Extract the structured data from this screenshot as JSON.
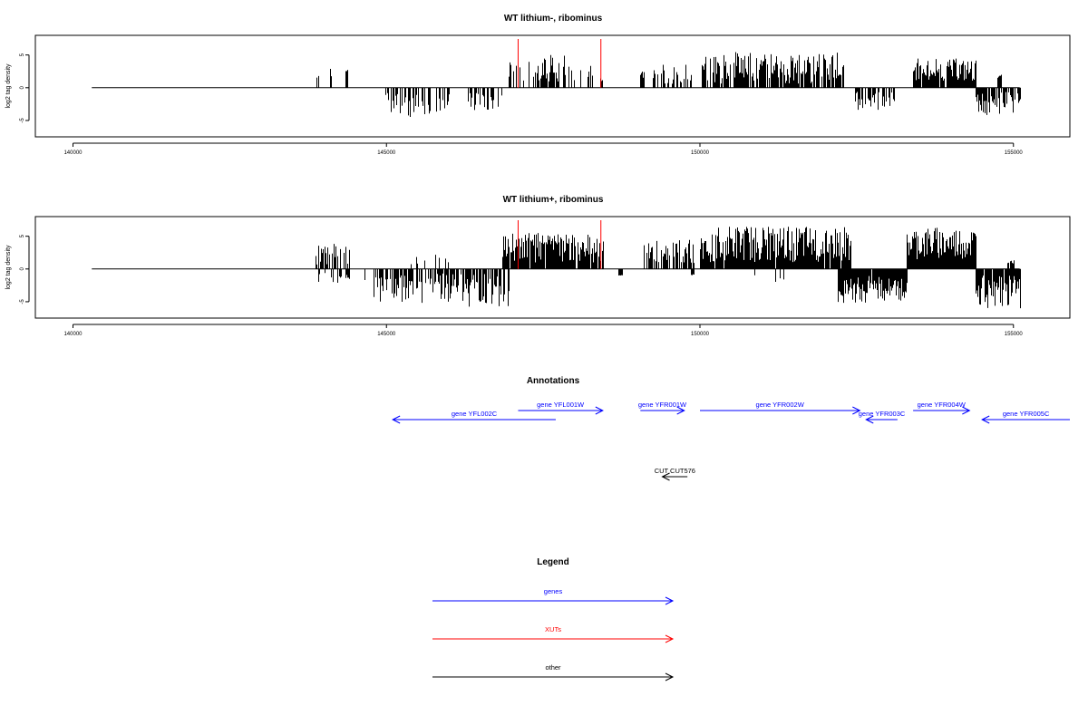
{
  "chart_data": [
    {
      "type": "bar",
      "title": "WT lithium-, ribominus",
      "ylabel": "log2 tag density",
      "xlabel": "",
      "xlim": [
        139400,
        155900
      ],
      "ylim": [
        -7.5,
        8
      ],
      "xticks": [
        140000,
        145000,
        150000,
        155000
      ],
      "yticks": [
        -5,
        0,
        5
      ],
      "baseline": {
        "x_start": 140300,
        "x_end": 155100
      },
      "segments": [
        {
          "x0": 143850,
          "x1": 144150,
          "density": 0.25,
          "min": 1.0,
          "max": 3.4,
          "sign": 1,
          "seed": 11
        },
        {
          "x0": 144350,
          "x1": 144380,
          "density": 1.0,
          "min": 2.5,
          "max": 2.8,
          "sign": 1,
          "seed": 12
        },
        {
          "x0": 144950,
          "x1": 145700,
          "density": 0.55,
          "min": 0.6,
          "max": 4.8,
          "sign": -1,
          "seed": 13
        },
        {
          "x0": 145750,
          "x1": 146000,
          "density": 0.4,
          "min": 0.8,
          "max": 3.8,
          "sign": -1,
          "seed": 14
        },
        {
          "x0": 146300,
          "x1": 146850,
          "density": 0.5,
          "min": 0.8,
          "max": 3.5,
          "sign": -1,
          "seed": 15
        },
        {
          "x0": 146950,
          "x1": 147350,
          "density": 0.35,
          "min": 0.8,
          "max": 4.0,
          "sign": 1,
          "seed": 16
        },
        {
          "x0": 147350,
          "x1": 147850,
          "density": 0.7,
          "min": 0.6,
          "max": 5.0,
          "sign": 1,
          "seed": 17
        },
        {
          "x0": 147850,
          "x1": 148300,
          "density": 0.35,
          "min": 0.6,
          "max": 3.5,
          "sign": 1,
          "seed": 18
        },
        {
          "x0": 148350,
          "x1": 148450,
          "density": 0.5,
          "min": 0.6,
          "max": 2.5,
          "sign": 1,
          "seed": 19
        },
        {
          "x0": 149050,
          "x1": 149100,
          "density": 1.0,
          "min": 1.5,
          "max": 2.5,
          "sign": 1,
          "seed": 20
        },
        {
          "x0": 149250,
          "x1": 149400,
          "density": 0.4,
          "min": 0.8,
          "max": 3.5,
          "sign": 1,
          "seed": 21
        },
        {
          "x0": 149400,
          "x1": 149850,
          "density": 0.6,
          "min": 0.6,
          "max": 3.8,
          "sign": 1,
          "seed": 22
        },
        {
          "x0": 150000,
          "x1": 152300,
          "density": 0.75,
          "min": 0.6,
          "max": 5.5,
          "sign": 1,
          "seed": 23
        },
        {
          "x0": 152400,
          "x1": 153100,
          "density": 0.5,
          "min": 0.5,
          "max": 3.5,
          "sign": -1,
          "seed": 24
        },
        {
          "x0": 153400,
          "x1": 154400,
          "density": 0.95,
          "min": 1.0,
          "max": 4.5,
          "sign": 1,
          "seed": 25
        },
        {
          "x0": 154400,
          "x1": 155100,
          "density": 0.8,
          "min": 0.6,
          "max": 4.2,
          "sign": -1,
          "seed": 26
        },
        {
          "x0": 154750,
          "x1": 154800,
          "density": 1.0,
          "min": 1.5,
          "max": 2.0,
          "sign": 1,
          "seed": 27
        }
      ],
      "red_lines": [
        147100,
        148420
      ]
    },
    {
      "type": "bar",
      "title": "WT lithium+, ribominus",
      "ylabel": "log2 tag density",
      "xlabel": "",
      "xlim": [
        139400,
        155900
      ],
      "ylim": [
        -7.5,
        8
      ],
      "xticks": [
        140000,
        145000,
        150000,
        155000
      ],
      "yticks": [
        -5,
        0,
        5
      ],
      "baseline": {
        "x_start": 140300,
        "x_end": 155100
      },
      "segments": [
        {
          "x0": 143850,
          "x1": 144400,
          "density": 0.6,
          "min": 0.6,
          "max": 4.0,
          "sign": 1,
          "seed": 31
        },
        {
          "x0": 143900,
          "x1": 144650,
          "density": 0.2,
          "min": 0.6,
          "max": 2.8,
          "sign": -1,
          "seed": 32
        },
        {
          "x0": 144800,
          "x1": 146300,
          "density": 0.75,
          "min": 0.6,
          "max": 5.2,
          "sign": -1,
          "seed": 33
        },
        {
          "x0": 146300,
          "x1": 146950,
          "density": 0.6,
          "min": 0.6,
          "max": 5.8,
          "sign": -1,
          "seed": 34
        },
        {
          "x0": 145300,
          "x1": 146000,
          "density": 0.15,
          "min": 0.6,
          "max": 2.2,
          "sign": 1,
          "seed": 35
        },
        {
          "x0": 146850,
          "x1": 148450,
          "density": 0.95,
          "min": 1.0,
          "max": 5.5,
          "sign": 1,
          "seed": 36
        },
        {
          "x0": 148700,
          "x1": 148750,
          "density": 1.0,
          "min": 0.8,
          "max": 1.0,
          "sign": -1,
          "seed": 37
        },
        {
          "x0": 149100,
          "x1": 149900,
          "density": 0.6,
          "min": 0.6,
          "max": 4.5,
          "sign": 1,
          "seed": 38
        },
        {
          "x0": 149850,
          "x1": 149900,
          "density": 1.0,
          "min": 0.8,
          "max": 1.0,
          "sign": -1,
          "seed": 39
        },
        {
          "x0": 150000,
          "x1": 152400,
          "density": 0.95,
          "min": 1.0,
          "max": 6.5,
          "sign": 1,
          "seed": 40
        },
        {
          "x0": 150800,
          "x1": 151600,
          "density": 0.1,
          "min": 0.6,
          "max": 2.5,
          "sign": -1,
          "seed": 41
        },
        {
          "x0": 152200,
          "x1": 153300,
          "density": 0.95,
          "min": 1.0,
          "max": 5.2,
          "sign": -1,
          "seed": 42
        },
        {
          "x0": 153300,
          "x1": 154400,
          "density": 1.0,
          "min": 1.5,
          "max": 6.5,
          "sign": 1,
          "seed": 43
        },
        {
          "x0": 154400,
          "x1": 155100,
          "density": 0.95,
          "min": 1.0,
          "max": 6.0,
          "sign": -1,
          "seed": 44
        },
        {
          "x0": 154900,
          "x1": 155000,
          "density": 0.6,
          "min": 0.6,
          "max": 1.5,
          "sign": 1,
          "seed": 45
        }
      ],
      "red_lines": [
        147100,
        148420
      ]
    }
  ],
  "annotations": {
    "title": "Annotations",
    "xlim": [
      139400,
      155900
    ],
    "items": [
      {
        "label": "gene YFL002C",
        "x_start": 147700,
        "x_end": 145100,
        "row": 2,
        "color": "#0000ff"
      },
      {
        "label": "gene YFL001W",
        "x_start": 147100,
        "x_end": 148450,
        "row": 1,
        "color": "#0000ff"
      },
      {
        "label": "gene YFR001W",
        "x_start": 149050,
        "x_end": 149750,
        "row": 1,
        "color": "#0000ff"
      },
      {
        "label": "gene YFR002W",
        "x_start": 150000,
        "x_end": 152550,
        "row": 1,
        "color": "#0000ff"
      },
      {
        "label": "gene YFR003C",
        "x_start": 153150,
        "x_end": 152650,
        "row": 2,
        "color": "#0000ff"
      },
      {
        "label": "gene YFR004W",
        "x_start": 153400,
        "x_end": 154300,
        "row": 1,
        "color": "#0000ff"
      },
      {
        "label": "gene YFR005C",
        "x_start": 155900,
        "x_end": 154500,
        "row": 2,
        "color": "#0000ff"
      },
      {
        "label": "CUT CUT576",
        "x_start": 149800,
        "x_end": 149400,
        "row": 3,
        "color": "#000000"
      }
    ]
  },
  "legend": {
    "title": "Legend",
    "items": [
      {
        "label": "genes",
        "color": "#0000ff"
      },
      {
        "label": "XUTs",
        "color": "#ff0000"
      },
      {
        "label": "other",
        "color": "#000000"
      }
    ]
  }
}
